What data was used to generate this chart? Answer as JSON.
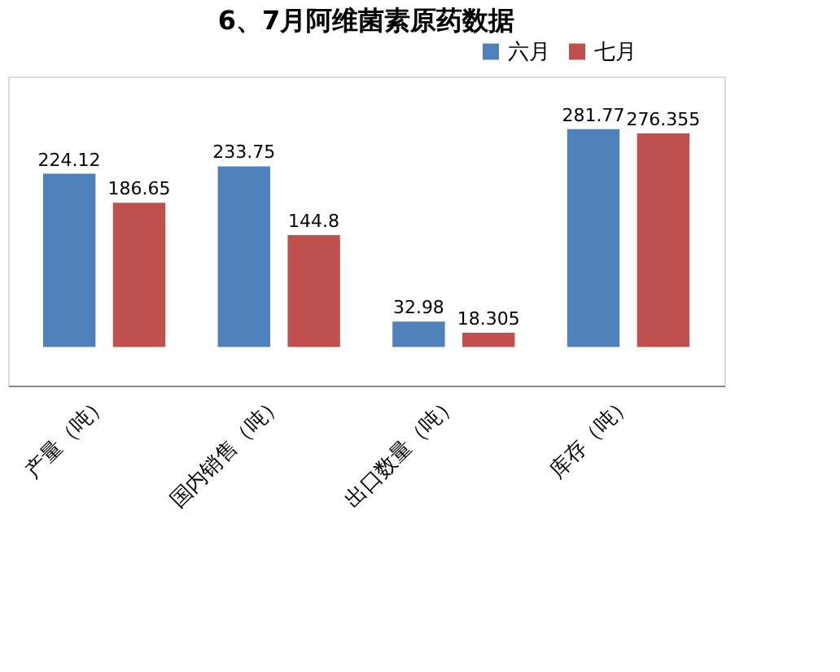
{
  "chart_data": {
    "type": "bar",
    "title": "6、7月阿维菌素原药数据",
    "categories": [
      "产量（吨）",
      "国内销售（吨）",
      "出口数量（吨）",
      "库存（吨）"
    ],
    "series": [
      {
        "name": "六月",
        "color": "#4f81bd",
        "values": [
          224.12,
          233.75,
          32.98,
          281.77
        ]
      },
      {
        "name": "七月",
        "color": "#c0504d",
        "values": [
          186.65,
          144.8,
          18.305,
          276.355
        ]
      }
    ],
    "data_labels": true,
    "legend": "top right",
    "grid": false
  }
}
